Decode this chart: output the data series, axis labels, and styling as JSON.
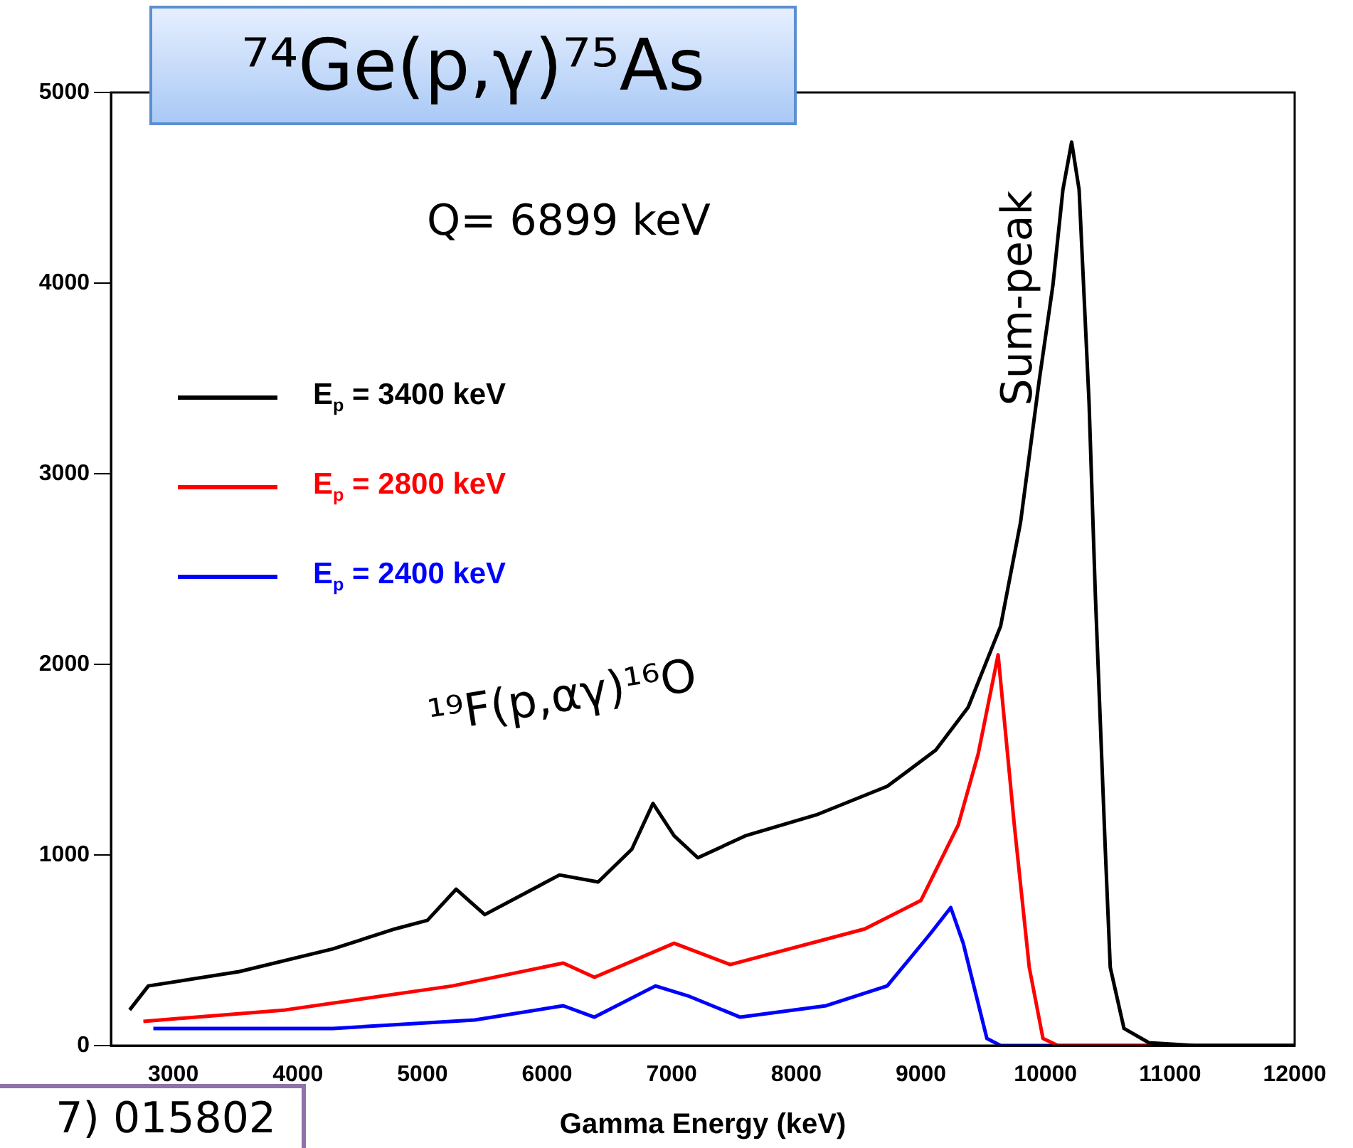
{
  "chart_data": {
    "type": "line",
    "title": "⁷⁴Ge(p,γ)⁷⁵As",
    "xlabel": "Gamma Energy (keV)",
    "annotations": [
      "Q= 6899 keV",
      "Sum-peak",
      "¹⁹F(p,αγ)¹⁶O",
      "7) 015802"
    ],
    "xlim": [
      2500,
      12000
    ],
    "xticks": [
      3000,
      4000,
      5000,
      6000,
      7000,
      8000,
      9000,
      10000,
      11000,
      12000
    ],
    "ylim": [
      0,
      5000
    ],
    "yticks": [
      0,
      1000,
      2000,
      3000,
      4000,
      5000
    ],
    "grid": false,
    "legend": "top left",
    "marker": "none",
    "line_style": "solid",
    "series": [
      {
        "name": "E$_{p}$ = 3400 keV",
        "color": "#000000",
        "x": [
          2650,
          2800,
          3530,
          4280,
          4780,
          5040,
          5270,
          5500,
          6100,
          6410,
          6680,
          6850,
          7020,
          7210,
          7590,
          8160,
          8730,
          9120,
          9380,
          9640,
          9800,
          9950,
          10060,
          10140,
          10210,
          10270,
          10350,
          10400,
          10480,
          10520,
          10630,
          10830,
          11200,
          12000
        ],
        "values": [
          187,
          313,
          388,
          507,
          612,
          657,
          820,
          687,
          895,
          858,
          1030,
          1270,
          1100,
          985,
          1100,
          1210,
          1360,
          1550,
          1775,
          2200,
          2745,
          3490,
          3990,
          4490,
          4740,
          4490,
          3370,
          2370,
          1030,
          410,
          90,
          15,
          0,
          0
        ]
      },
      {
        "name": "E$_{p}$ = 2800 keV",
        "color": "#ff0000",
        "x": [
          2760,
          3900,
          5240,
          6130,
          6380,
          7020,
          7470,
          8550,
          9000,
          9300,
          9460,
          9620,
          9750,
          9870,
          9980,
          10100,
          12000
        ],
        "values": [
          127,
          187,
          313,
          433,
          358,
          537,
          425,
          612,
          761,
          1157,
          1530,
          2050,
          1157,
          410,
          37,
          0,
          0
        ]
      },
      {
        "name": "E$_{p}$ = 2400 keV",
        "color": "#0000ff",
        "x": [
          2840,
          4280,
          5420,
          6130,
          6380,
          6870,
          7130,
          7550,
          8240,
          8730,
          9070,
          9240,
          9340,
          9530,
          9640,
          12000
        ],
        "values": [
          90,
          90,
          134,
          209,
          149,
          313,
          261,
          149,
          209,
          313,
          582,
          724,
          537,
          37,
          0,
          0
        ]
      }
    ]
  }
}
